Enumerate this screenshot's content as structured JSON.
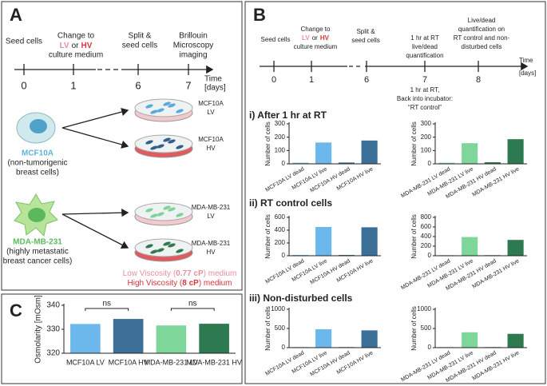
{
  "panel_a": {
    "label": "A",
    "step_1": "Seed cells",
    "step_2": {
      "line1": "Change to",
      "lv": "LV",
      "or": "or",
      "hv": "HV",
      "line3": "culture medium"
    },
    "step_3": [
      "Split &",
      "seed cells"
    ],
    "step_4": [
      "Brillouin",
      "Microscopy",
      "imaging"
    ],
    "days": [
      0,
      1,
      6,
      7
    ],
    "time_label": [
      "Time",
      "[days]"
    ],
    "mcf10a": {
      "name": "MCF10A",
      "desc": [
        "(non-tumorigenic",
        "breast cells)"
      ]
    },
    "mda": {
      "name": "MDA-MB-231",
      "desc": [
        "(highly metastatic",
        "breast cancer cells)"
      ]
    },
    "dishes": [
      [
        "MCF10A",
        "LV"
      ],
      [
        "MCF10A",
        "HV"
      ],
      [
        "MDA-MB-231",
        "LV"
      ],
      [
        "MDA-MB-231",
        "HV"
      ]
    ],
    "low_viscosity": [
      "Low Viscosity (",
      "0.77 cP",
      ") medium"
    ],
    "high_viscosity": [
      "High Viscosity (",
      "8 cP",
      ") medium"
    ]
  },
  "panel_b": {
    "label": "B",
    "step_1": "Seed cells",
    "step_2": {
      "line1": "Change to",
      "lv": "LV",
      "or": "or",
      "hv": "HV",
      "line3": "culture medium"
    },
    "step_3": [
      "Split &",
      "seed cells"
    ],
    "step_4": [
      "1 hr at RT",
      "live/dead",
      "quantification"
    ],
    "step_5": [
      "Live/dead",
      "quantification on",
      "RT control and non-",
      "disturbed cells"
    ],
    "days": [
      0,
      1,
      6,
      7,
      8
    ],
    "time_label": [
      "Time",
      "[days]"
    ],
    "note": [
      "1 hr at RT,",
      "Back into incubator:",
      "“RT control”"
    ],
    "rows": [
      "i) After 1 hr at RT",
      "ii) RT control cells",
      "iii) Non-disturbed cells"
    ]
  },
  "panel_c": {
    "label": "C"
  },
  "chart_data": [
    {
      "type": "bar",
      "ylabel": "Osmolarity [mOsm]",
      "categories": [
        "MCF10A LV",
        "MCF10A HV",
        "MDA-MB-231 LV",
        "MDA-MB-231 HV"
      ],
      "values": [
        332.2,
        334.3,
        331.6,
        332.3
      ],
      "colors": [
        "#6cb8ec",
        "#3b6f98",
        "#7ed69a",
        "#2e7a50"
      ],
      "ylim": [
        320,
        340
      ],
      "yticks": [
        320,
        330,
        340
      ],
      "annotations": [
        "ns",
        "ns"
      ]
    },
    {
      "type": "bar",
      "ylabel": "Number of cells",
      "categories": [
        "MCF10A LV dead",
        "MCF10A LV live",
        "MCF10A HV dead",
        "MCF10A HV live"
      ],
      "values": [
        8,
        160,
        10,
        175
      ],
      "colors": [
        "#6cb8ec",
        "#6cb8ec",
        "#3b6f98",
        "#3b6f98"
      ],
      "ylim": [
        0,
        300
      ],
      "yticks": [
        0,
        100,
        200,
        300
      ]
    },
    {
      "type": "bar",
      "ylabel": "Number of cells",
      "categories": [
        "MDA-MB-231 LV dead",
        "MDA-MB-231 LV live",
        "MDA-MB-231 HV dead",
        "MDA-MB-231 HV live"
      ],
      "values": [
        8,
        155,
        12,
        185
      ],
      "colors": [
        "#7ed69a",
        "#7ed69a",
        "#2e7a50",
        "#2e7a50"
      ],
      "ylim": [
        0,
        300
      ],
      "yticks": [
        0,
        100,
        200,
        300
      ]
    },
    {
      "type": "bar",
      "ylabel": "Number of cells",
      "categories": [
        "MCF10A LV dead",
        "MCF10A LV live",
        "MCF10A HV dead",
        "MCF10A HV live"
      ],
      "values": [
        12,
        450,
        12,
        445
      ],
      "colors": [
        "#6cb8ec",
        "#6cb8ec",
        "#3b6f98",
        "#3b6f98"
      ],
      "ylim": [
        0,
        600
      ],
      "yticks": [
        0,
        200,
        400,
        600
      ]
    },
    {
      "type": "bar",
      "ylabel": "Number of cells",
      "categories": [
        "MDA-MB-231 LV dead",
        "MDA-MB-231 LV live",
        "MDA-MB-231 HV dead",
        "MDA-MB-231 HV live"
      ],
      "values": [
        12,
        390,
        12,
        330
      ],
      "colors": [
        "#7ed69a",
        "#7ed69a",
        "#2e7a50",
        "#2e7a50"
      ],
      "ylim": [
        0,
        800
      ],
      "yticks": [
        0,
        200,
        400,
        600,
        800
      ]
    },
    {
      "type": "bar",
      "ylabel": "Number of cells",
      "categories": [
        "MCF10A LV dead",
        "MCF10A LV live",
        "MCF10A HV dead",
        "MCF10A HV live"
      ],
      "values": [
        15,
        480,
        15,
        450
      ],
      "colors": [
        "#6cb8ec",
        "#6cb8ec",
        "#3b6f98",
        "#3b6f98"
      ],
      "ylim": [
        0,
        1000
      ],
      "yticks": [
        0,
        500,
        1000
      ]
    },
    {
      "type": "bar",
      "ylabel": "Number of cells",
      "categories": [
        "MDA-MB-231 LV dead",
        "MDA-MB-231 LV live",
        "MDA-MB-231 HV dead",
        "MDA-MB-231 HV live"
      ],
      "values": [
        15,
        400,
        15,
        360
      ],
      "colors": [
        "#7ed69a",
        "#7ed69a",
        "#2e7a50",
        "#2e7a50"
      ],
      "ylim": [
        0,
        1000
      ],
      "yticks": [
        0,
        500,
        1000
      ]
    }
  ]
}
